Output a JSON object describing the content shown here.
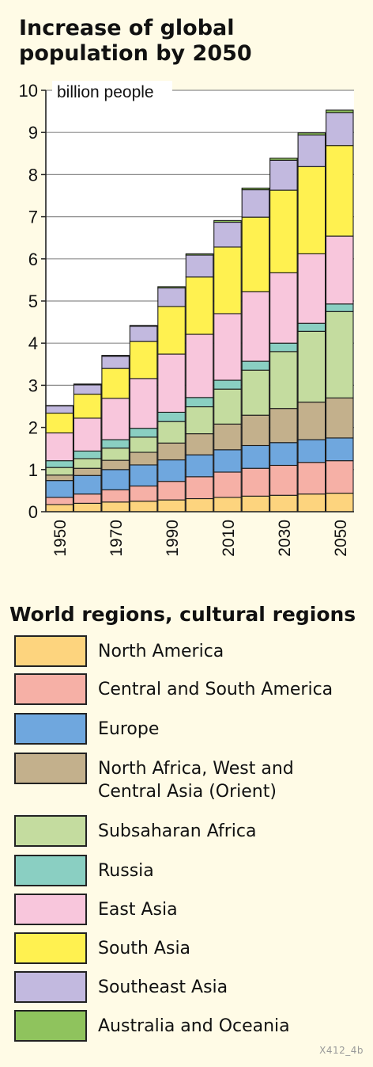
{
  "chart_data": {
    "type": "stacked-bar",
    "title": "Increase of global population by 2050",
    "ylabel": "billion people",
    "ylim": [
      0,
      10
    ],
    "y_ticks": [
      0,
      1,
      2,
      3,
      4,
      5,
      6,
      7,
      8,
      9,
      10
    ],
    "grid": true,
    "x": [
      1950,
      1960,
      1970,
      1980,
      1990,
      2000,
      2010,
      2020,
      2030,
      2040,
      2050
    ],
    "x_tick_labels": [
      "1950",
      "1970",
      "1990",
      "2010",
      "2030",
      "2050"
    ],
    "series": [
      {
        "name": "North America",
        "color": "#fdd47e",
        "values": [
          0.17,
          0.2,
          0.23,
          0.25,
          0.28,
          0.31,
          0.34,
          0.37,
          0.39,
          0.42,
          0.44
        ]
      },
      {
        "name": "Central and South America",
        "color": "#f6b0a6",
        "values": [
          0.17,
          0.22,
          0.29,
          0.36,
          0.44,
          0.52,
          0.6,
          0.66,
          0.71,
          0.75,
          0.77
        ]
      },
      {
        "name": "Europe",
        "color": "#6fa7de",
        "values": [
          0.4,
          0.44,
          0.48,
          0.5,
          0.51,
          0.52,
          0.53,
          0.54,
          0.54,
          0.54,
          0.54
        ]
      },
      {
        "name": "North Africa, West and Central Asia (Orient)",
        "color": "#c3b08c",
        "values": [
          0.13,
          0.17,
          0.22,
          0.3,
          0.4,
          0.5,
          0.61,
          0.72,
          0.81,
          0.89,
          0.95
        ]
      },
      {
        "name": "Subsaharan Africa",
        "color": "#c4dc9f",
        "values": [
          0.18,
          0.23,
          0.29,
          0.36,
          0.51,
          0.64,
          0.83,
          1.07,
          1.35,
          1.68,
          2.05
        ]
      },
      {
        "name": "Russia",
        "color": "#8acfc2",
        "values": [
          0.16,
          0.18,
          0.2,
          0.21,
          0.22,
          0.22,
          0.21,
          0.21,
          0.2,
          0.19,
          0.18
        ]
      },
      {
        "name": "East Asia",
        "color": "#f8c6dc",
        "values": [
          0.66,
          0.78,
          0.98,
          1.18,
          1.38,
          1.5,
          1.58,
          1.65,
          1.67,
          1.65,
          1.61
        ]
      },
      {
        "name": "South Asia",
        "color": "#fff150",
        "values": [
          0.47,
          0.57,
          0.71,
          0.88,
          1.13,
          1.36,
          1.58,
          1.77,
          1.96,
          2.07,
          2.15
        ]
      },
      {
        "name": "Southeast Asia",
        "color": "#c2b9df",
        "values": [
          0.17,
          0.22,
          0.29,
          0.36,
          0.44,
          0.52,
          0.59,
          0.65,
          0.71,
          0.75,
          0.78
        ]
      },
      {
        "name": "Australia and Oceania",
        "color": "#8fc35d",
        "values": [
          0.01,
          0.02,
          0.02,
          0.02,
          0.03,
          0.03,
          0.04,
          0.04,
          0.05,
          0.05,
          0.06
        ]
      }
    ]
  },
  "legend": {
    "title": "World regions, cultural regions",
    "items": [
      {
        "label": "North America",
        "color": "#fdd47e"
      },
      {
        "label": "Central and South America",
        "color": "#f6b0a6"
      },
      {
        "label": "Europe",
        "color": "#6fa7de"
      },
      {
        "label": "North Africa, West and\nCentral Asia (Orient)",
        "color": "#c3b08c"
      },
      {
        "label": "Subsaharan Africa",
        "color": "#c4dc9f"
      },
      {
        "label": "Russia",
        "color": "#8acfc2"
      },
      {
        "label": "East Asia",
        "color": "#f8c6dc"
      },
      {
        "label": "South Asia",
        "color": "#fff150"
      },
      {
        "label": "Southeast Asia",
        "color": "#c2b9df"
      },
      {
        "label": "Australia and Oceania",
        "color": "#8fc35d"
      }
    ]
  },
  "figure_code": "X412_4b"
}
